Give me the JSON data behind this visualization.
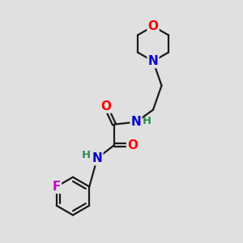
{
  "bg_color": "#e0e0e0",
  "bond_color": "#1a1a1a",
  "bond_width": 1.6,
  "atom_colors": {
    "O": "#ff0000",
    "N": "#0000cc",
    "F": "#cc00cc",
    "H": "#2e8b57",
    "C": "#1a1a1a"
  },
  "font_size_atom": 11,
  "font_size_H": 9.5
}
